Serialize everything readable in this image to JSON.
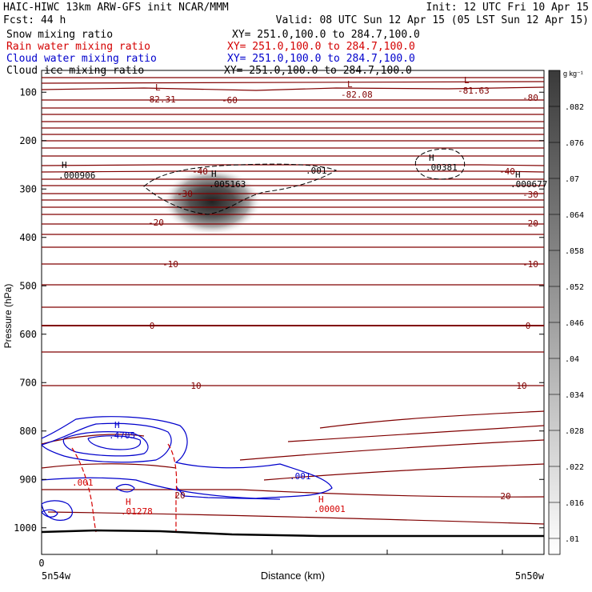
{
  "header": {
    "line1_left": "HAIC-HIWC 13km ARW-GFS init   NCAR/MMM",
    "line1_right": "Init: 12 UTC Fri 10 Apr 15",
    "line2_left": "Fcst:   44 h",
    "line2_right": "Valid: 08 UTC Sun 12 Apr 15 (05 LST Sun 12 Apr 15)",
    "fields": [
      {
        "name": "Snow mixing ratio",
        "xy": "XY= 251.0,100.0 to 284.7,100.0",
        "color": "#000000"
      },
      {
        "name": "Rain water mixing ratio",
        "xy": "XY= 251.0,100.0 to 284.7,100.0",
        "color": "#d40000"
      },
      {
        "name": "Cloud water mixing ratio",
        "xy": "XY= 251.0,100.0 to 284.7,100.0",
        "color": "#0000cc"
      },
      {
        "name": "Cloud ice mixing ratio",
        "xy": "XY= 251.0,100.0 to 284.7,100.0",
        "color": "#000000"
      }
    ]
  },
  "chart_data": {
    "type": "heatmap",
    "xlabel": "Distance (km)",
    "ylabel": "Pressure (hPa)",
    "x_left_label": "5n54w",
    "x_right_label": "5n50w",
    "x_zero_label": "0",
    "y_ticks": [
      100,
      200,
      300,
      400,
      500,
      600,
      700,
      800,
      900,
      1000
    ],
    "y_range": [
      50,
      1050
    ],
    "colorbar": {
      "unit": "g kg⁻¹",
      "ticks": [
        ".01",
        ".016",
        ".022",
        ".028",
        ".034",
        ".04",
        ".046",
        ".052",
        ".058",
        ".064",
        ".07",
        ".076",
        ".082"
      ]
    },
    "temperature_contour_labels": [
      "-80",
      "-60",
      "-40",
      "-30",
      "-20",
      "-10",
      "0",
      "10",
      "20"
    ],
    "extrema": [
      {
        "kind": "L",
        "value": "-82.31",
        "color": "#800000"
      },
      {
        "kind": "L",
        "value": "-82.08",
        "color": "#800000"
      },
      {
        "kind": "L",
        "value": "-81.63",
        "color": "#800000"
      },
      {
        "kind": "H",
        "value": ".000906",
        "color": "#000000"
      },
      {
        "kind": "H",
        "value": ".005163",
        "color": "#000000"
      },
      {
        "kind": "H",
        "value": ".00381",
        "color": "#000000"
      },
      {
        "kind": "H",
        "value": ".000677",
        "color": "#000000"
      },
      {
        "kind": "H",
        "value": ".4705",
        "color": "#0000cc"
      },
      {
        "kind": "H",
        "value": ".01278",
        "color": "#d40000"
      },
      {
        "kind": "H",
        "value": ".00001",
        "color": "#d40000"
      }
    ],
    "contour_labels": {
      "ice": ".001",
      "cloud": ".001",
      "rain": ".001"
    }
  }
}
